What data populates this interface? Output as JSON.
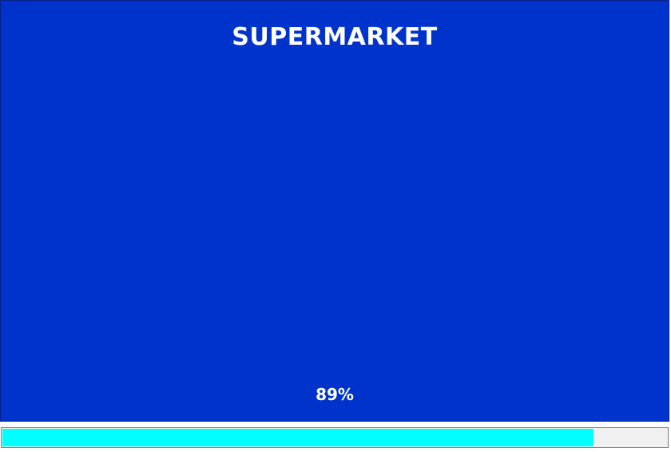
{
  "splash": {
    "title": "SUPERMARKET",
    "background_color": "#0033cc",
    "text_color": "#ffffff"
  },
  "progress": {
    "percent_label": "89%",
    "value": 0.89,
    "fill_color": "#00ffff",
    "track_color": "#f0f0f0"
  }
}
